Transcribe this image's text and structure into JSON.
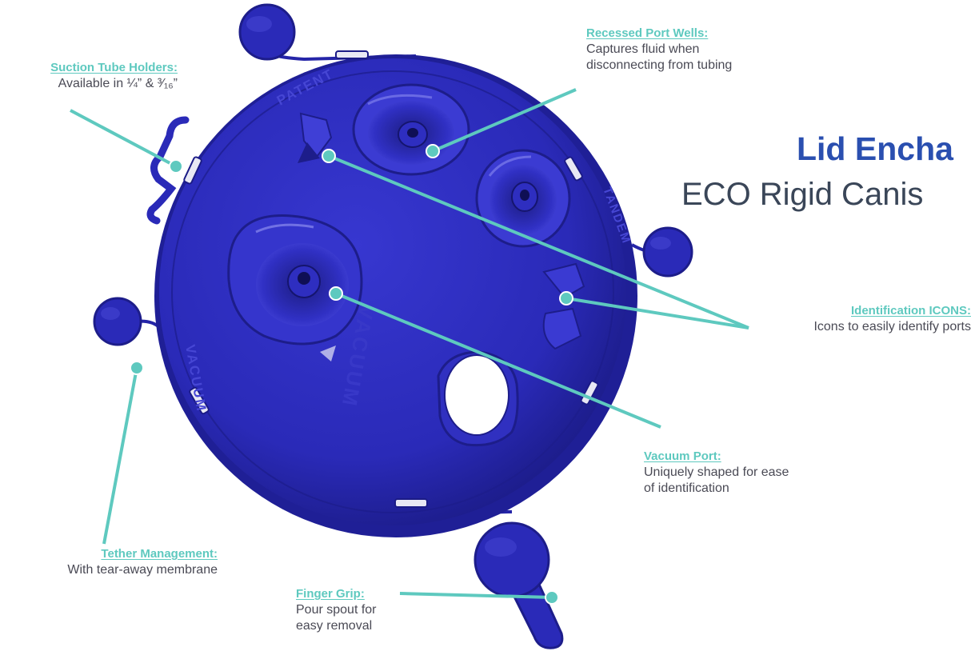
{
  "title": {
    "main": "Lid Encha",
    "sub": "ECO Rigid Canis"
  },
  "lid_labels": {
    "patent": "PATENT",
    "vacuum_rim": "VACUUM",
    "vacuum_center": "VACUUM",
    "tandem": "TANDEM"
  },
  "callouts": {
    "suction": {
      "title": "Suction Tube Holders:",
      "desc": "Available in ¼” & ³⁄₁₆”"
    },
    "recessed": {
      "title": "Recessed Port Wells:",
      "desc": "Captures fluid when\ndisconnecting from tubing"
    },
    "identification": {
      "title": "Identification ICONS:",
      "desc": "Icons to easily identify ports"
    },
    "vacuum": {
      "title": "Vacuum Port:",
      "desc": "Uniquely shaped for ease\nof identification"
    },
    "tether": {
      "title": "Tether Management:",
      "desc": "With tear-away membrane"
    },
    "finger": {
      "title": "Finger Grip:",
      "desc": "Pour spout for\neasy removal"
    }
  },
  "colors": {
    "lid": "#2a2ab8",
    "lid_dark": "#1d1d8a",
    "leader": "#5ec9bf",
    "title_accent": "#2a4fb0"
  }
}
